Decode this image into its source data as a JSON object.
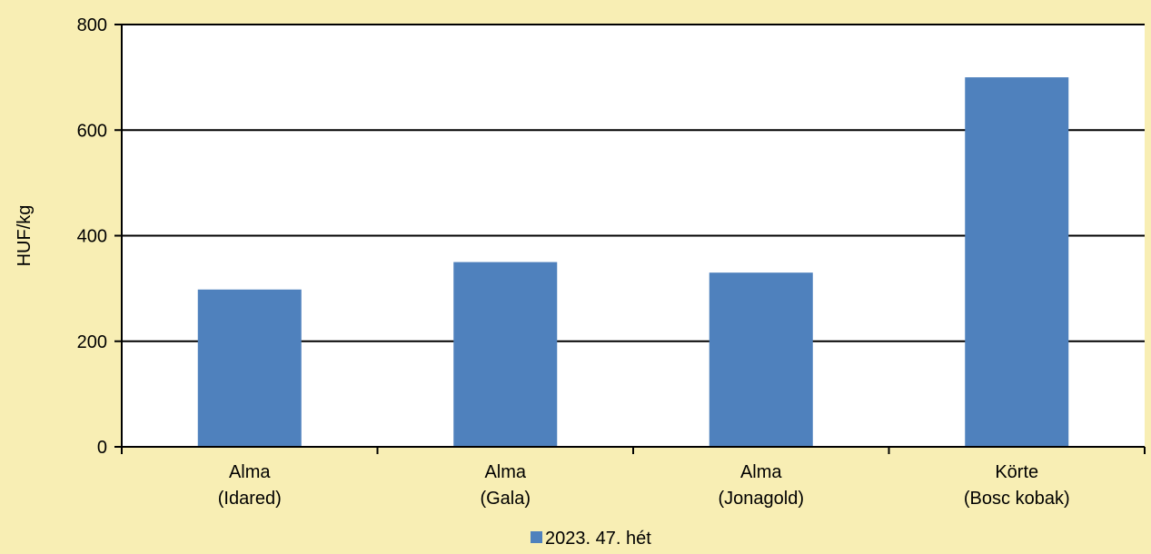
{
  "chart_data": {
    "type": "bar",
    "categories": [
      [
        "Alma",
        "(Idared)"
      ],
      [
        "Alma",
        "(Gala)"
      ],
      [
        "Alma",
        "(Jonagold)"
      ],
      [
        "Körte",
        "(Bosc kobak)"
      ]
    ],
    "series": [
      {
        "name": "2023. 47. hét",
        "color": "#4f81bd",
        "values": [
          298,
          350,
          330,
          700
        ]
      }
    ],
    "ylabel": "HUF/kg",
    "ylim": [
      0,
      800
    ],
    "yticks": [
      0,
      200,
      400,
      600,
      800
    ],
    "grid": true,
    "legend_position": "bottom-center"
  },
  "colors": {
    "background": "#f8eeb4",
    "plot_background": "#ffffff",
    "axis": "#000000",
    "gridline": "#000000"
  }
}
